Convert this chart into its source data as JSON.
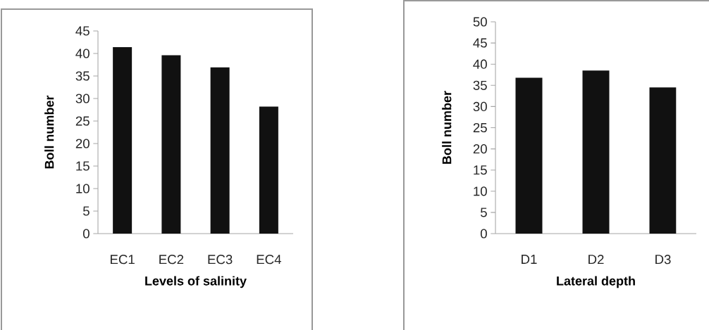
{
  "chart_data": [
    {
      "type": "bar",
      "categories": [
        "EC1",
        "EC2",
        "EC3",
        "EC4"
      ],
      "values": [
        41.4,
        39.6,
        36.9,
        28.2
      ],
      "color": "#111111",
      "xlabel": "Levels of salinity",
      "ylabel": "Boll number",
      "ylim": [
        0,
        45
      ],
      "yticks": [
        0,
        5,
        10,
        15,
        20,
        25,
        30,
        35,
        40,
        45
      ]
    },
    {
      "type": "bar",
      "categories": [
        "D1",
        "D2",
        "D3"
      ],
      "values": [
        36.8,
        38.5,
        34.5
      ],
      "color": "#111111",
      "xlabel": "Lateral depth",
      "ylabel": "Boll number",
      "ylim": [
        0,
        50
      ],
      "yticks": [
        0,
        5,
        10,
        15,
        20,
        25,
        30,
        35,
        40,
        45,
        50
      ]
    }
  ]
}
